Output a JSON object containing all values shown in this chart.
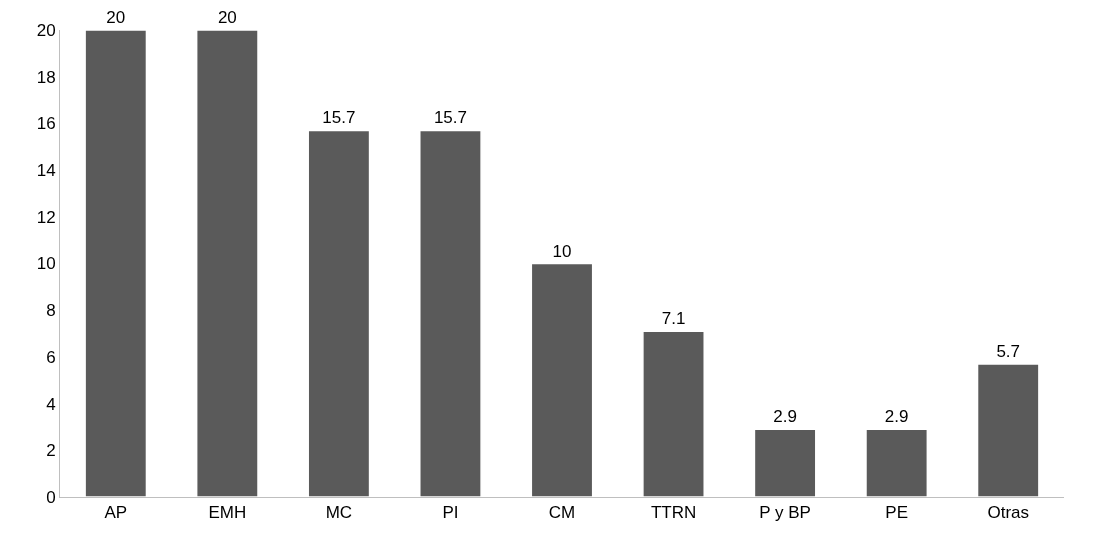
{
  "chart_data": {
    "type": "bar",
    "categories": [
      "AP",
      "EMH",
      "MC",
      "PI",
      "CM",
      "TTRN",
      "P y BP",
      "PE",
      "Otras"
    ],
    "values": [
      20,
      20,
      15.7,
      15.7,
      10,
      7.1,
      2.9,
      2.9,
      5.7
    ],
    "color": "#5a5a5a",
    "ylim": [
      0,
      20
    ],
    "yticks": [
      0,
      2,
      4,
      6,
      8,
      10,
      12,
      14,
      16,
      18,
      20
    ],
    "data_labels": true
  }
}
